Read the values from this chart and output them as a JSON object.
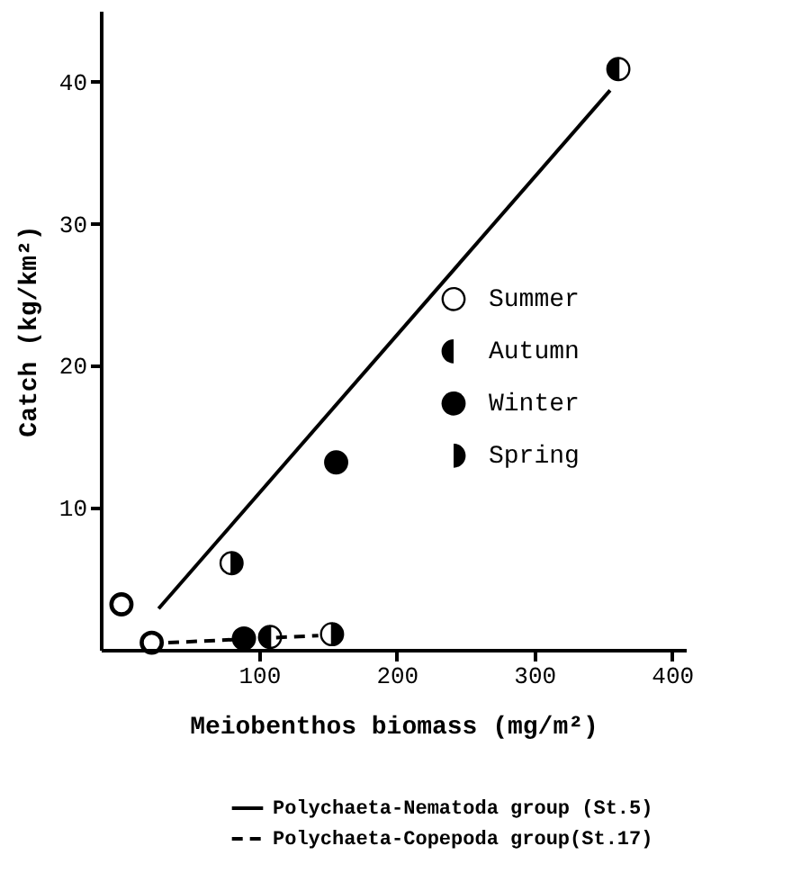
{
  "chart_data": {
    "type": "scatter",
    "xlabel": "Meiobenthos biomass (mg/m²)",
    "ylabel": "Catch (kg/km²)",
    "xlim": [
      -15,
      410
    ],
    "ylim": [
      0,
      45
    ],
    "xticks": [
      100,
      200,
      300,
      400
    ],
    "yticks": [
      10,
      20,
      30,
      40
    ],
    "grid": false,
    "legend": "right",
    "series": [
      {
        "name": "Summer",
        "color": "#000000",
        "x": [
          0,
          22
        ],
        "values": [
          3.2,
          0.5
        ]
      },
      {
        "name": "Autumn",
        "color": "#000000",
        "x": [
          361,
          108
        ],
        "values": [
          40.9,
          0.9
        ]
      },
      {
        "name": "Winter",
        "color": "#000000",
        "x": [
          156,
          89
        ],
        "values": [
          13.2,
          0.8
        ]
      },
      {
        "name": "Spring",
        "color": "#000000",
        "x": [
          80,
          153
        ],
        "values": [
          6.1,
          1.1
        ]
      },
      {
        "name": "Polychaeta-Nematoda group (St.5)",
        "type": "line",
        "color": "#000000",
        "line_style": "solid",
        "x": [
          27,
          355
        ],
        "values": [
          2.9,
          39.4
        ]
      },
      {
        "name": "Polychaeta-Copepoda group(St.17)",
        "type": "line",
        "color": "#000000",
        "line_style": "dashed",
        "x": [
          34,
          143
        ],
        "values": [
          0.5,
          1.0
        ]
      }
    ]
  }
}
